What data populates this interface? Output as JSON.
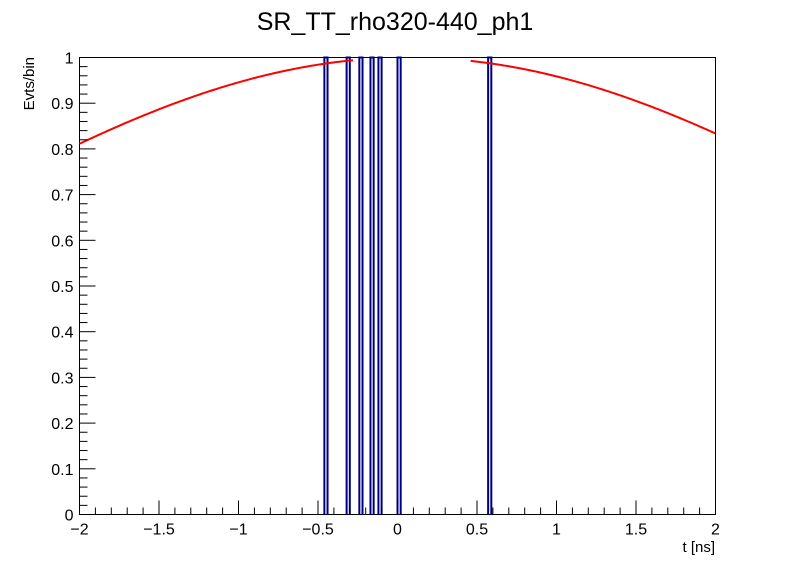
{
  "chart_data": {
    "type": "line",
    "title": "SR_TT_rho320-440_ph1",
    "xlabel": "t [ns]",
    "ylabel": "Evts/bin",
    "xlim": [
      -2,
      2
    ],
    "ylim": [
      0,
      1
    ],
    "grid": false,
    "x_ticks": [
      -2,
      -1.5,
      -1,
      -0.5,
      0,
      0.5,
      1,
      1.5,
      2
    ],
    "x_tick_labels": [
      "−2",
      "−1.5",
      "−1",
      "−0.5",
      "0",
      "0.5",
      "1",
      "1.5",
      "2"
    ],
    "y_ticks": [
      0,
      0.1,
      0.2,
      0.3,
      0.4,
      0.5,
      0.6,
      0.7,
      0.8,
      0.9,
      1
    ],
    "y_tick_labels": [
      "0",
      "0.1",
      "0.2",
      "0.3",
      "0.4",
      "0.5",
      "0.6",
      "0.7",
      "0.8",
      "0.9",
      "1"
    ],
    "histogram": {
      "color": "#000080",
      "bins": [
        {
          "x0": -0.46,
          "x1": -0.44,
          "value": 1
        },
        {
          "x0": -0.32,
          "x1": -0.3,
          "value": 1
        },
        {
          "x0": -0.24,
          "x1": -0.22,
          "value": 1
        },
        {
          "x0": -0.17,
          "x1": -0.15,
          "value": 1
        },
        {
          "x0": -0.12,
          "x1": -0.1,
          "value": 1
        },
        {
          "x0": 0.0,
          "x1": 0.02,
          "value": 1
        },
        {
          "x0": 0.57,
          "x1": 0.59,
          "value": 1
        }
      ]
    },
    "fit": {
      "color": "#ff0000",
      "shape": "gaussian",
      "amplitude": 1,
      "mean": 0.07,
      "sigma": 3.2,
      "x_range": [
        -2,
        2
      ],
      "gap": [
        -0.28,
        0.46
      ]
    }
  }
}
